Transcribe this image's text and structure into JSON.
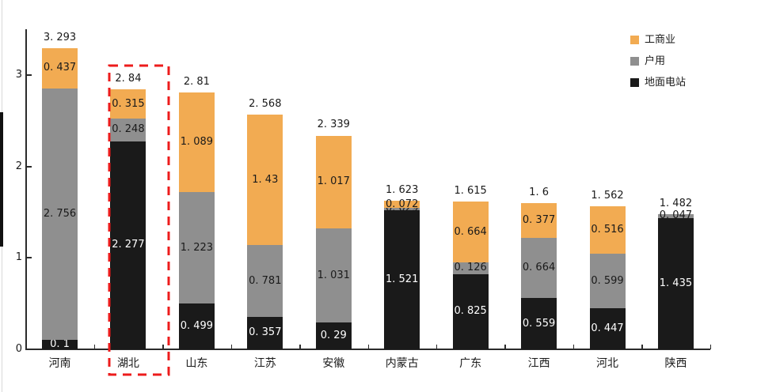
{
  "page": {
    "background": "#ffffff"
  },
  "chart_data": {
    "type": "bar",
    "stacked": true,
    "title": "",
    "xlabel": "",
    "ylabel": "",
    "ylim": [
      0,
      3.5
    ],
    "y_ticks": [
      0,
      1,
      2,
      3
    ],
    "grid": false,
    "legend_position": "top-right",
    "categories": [
      "河南",
      "湖北",
      "山东",
      "江苏",
      "安徽",
      "内蒙古",
      "广东",
      "江西",
      "河北",
      "陕西"
    ],
    "series": [
      {
        "name": "地面电站",
        "color": "#1a1a1a",
        "label_color": "#ffffff",
        "values": [
          0.1,
          2.277,
          0.499,
          0.357,
          0.29,
          1.521,
          0.825,
          0.559,
          0.447,
          1.435
        ]
      },
      {
        "name": "户用",
        "color": "#8f8f8f",
        "label_color": "#1a1a1a",
        "values": [
          2.756,
          0.248,
          1.223,
          0.781,
          1.031,
          0.029,
          0.126,
          0.664,
          0.599,
          0.047
        ]
      },
      {
        "name": "工商业",
        "color": "#f2ab52",
        "label_color": "#1a1a1a",
        "values": [
          0.437,
          0.315,
          1.089,
          1.43,
          1.017,
          0.072,
          0.664,
          0.377,
          0.516,
          0
        ]
      }
    ],
    "totals": [
      3.293,
      2.84,
      2.81,
      2.568,
      2.339,
      1.623,
      1.615,
      1.6,
      1.562,
      1.482
    ],
    "legend": [
      {
        "label": "工商业",
        "color": "#f2ab52"
      },
      {
        "label": "户用",
        "color": "#8f8f8f"
      },
      {
        "label": "地面电站",
        "color": "#1a1a1a"
      }
    ],
    "highlight": {
      "category": "湖北",
      "style": "dashed-box",
      "color": "#ed1c1c"
    }
  }
}
